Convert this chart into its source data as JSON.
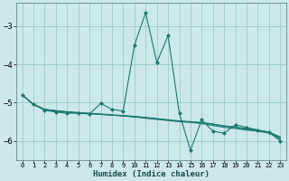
{
  "xlabel": "Humidex (Indice chaleur)",
  "background_color": "#cce8e8",
  "grid_color": "#99cccc",
  "line_color": "#1a7a6e",
  "x_values": [
    0,
    1,
    2,
    3,
    4,
    5,
    6,
    7,
    8,
    9,
    10,
    11,
    12,
    13,
    14,
    15,
    16,
    17,
    18,
    19,
    20,
    21,
    22,
    23
  ],
  "line1": [
    -4.8,
    -5.05,
    -5.2,
    -5.25,
    -5.28,
    -5.28,
    -5.3,
    -5.02,
    -5.18,
    -5.22,
    -3.5,
    -2.65,
    -3.95,
    -3.25,
    -5.28,
    -6.25,
    -5.45,
    -5.75,
    -5.8,
    -5.58,
    -5.65,
    -5.72,
    -5.78,
    -6.0
  ],
  "line2": [
    -4.8,
    -5.05,
    -5.18,
    -5.22,
    -5.25,
    -5.27,
    -5.29,
    -5.31,
    -5.33,
    -5.35,
    -5.38,
    -5.41,
    -5.44,
    -5.47,
    -5.5,
    -5.52,
    -5.55,
    -5.6,
    -5.65,
    -5.68,
    -5.72,
    -5.75,
    -5.8,
    -5.95
  ],
  "line3": [
    -4.8,
    -5.05,
    -5.18,
    -5.22,
    -5.25,
    -5.27,
    -5.29,
    -5.31,
    -5.33,
    -5.35,
    -5.37,
    -5.4,
    -5.43,
    -5.46,
    -5.49,
    -5.51,
    -5.53,
    -5.57,
    -5.62,
    -5.65,
    -5.7,
    -5.73,
    -5.78,
    -5.92
  ],
  "line4": [
    -4.8,
    -5.05,
    -5.18,
    -5.21,
    -5.24,
    -5.26,
    -5.28,
    -5.3,
    -5.32,
    -5.34,
    -5.36,
    -5.39,
    -5.42,
    -5.45,
    -5.48,
    -5.5,
    -5.52,
    -5.56,
    -5.61,
    -5.64,
    -5.68,
    -5.72,
    -5.77,
    -5.9
  ],
  "ylim": [
    -6.5,
    -2.4
  ],
  "yticks": [
    -6,
    -5,
    -4,
    -3
  ],
  "xlim": [
    -0.5,
    23.5
  ]
}
